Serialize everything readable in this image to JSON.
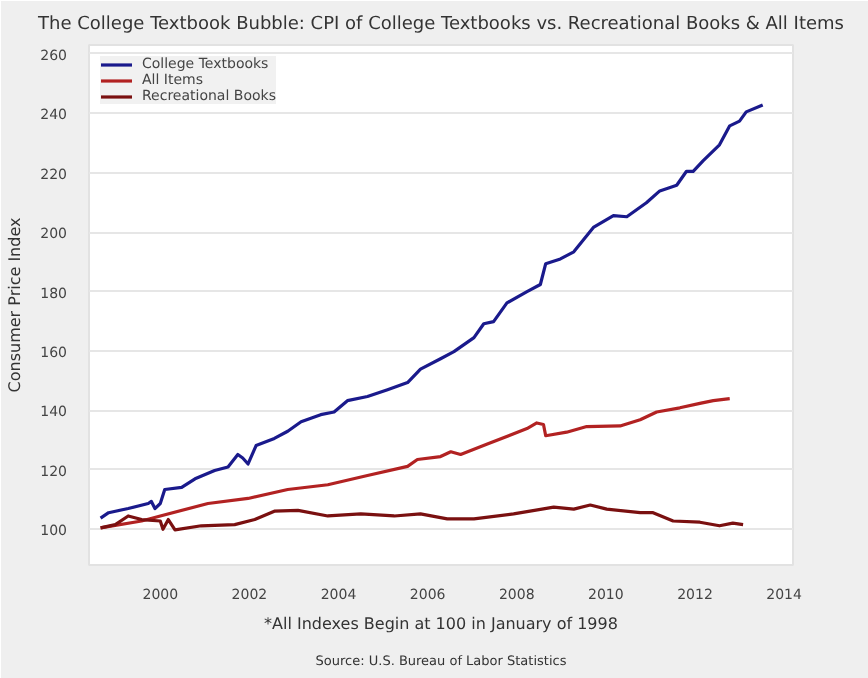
{
  "chart_data": {
    "type": "line",
    "title": "The College Textbook Bubble: CPI of College Textbooks vs. Recreational Books & All Items",
    "xlabel": "*All Indexes Begin at 100 in January of 1998",
    "ylabel": "Consumer Price Index",
    "annotations": [
      "Source: U.S. Bureau of Labor Statistics"
    ],
    "xlim": [
      1998.4,
      2014.2
    ],
    "xticks": [
      2000,
      2002,
      2004,
      2006,
      2008,
      2010,
      2012,
      2014
    ],
    "ylim": [
      88,
      263
    ],
    "yticks": [
      100,
      120,
      140,
      160,
      180,
      200,
      220,
      240,
      260
    ],
    "grid": "y",
    "legend": "top left",
    "marker": "none",
    "line_style": "solid",
    "series": [
      {
        "name": "College Textbooks",
        "color": "#1a1a8c",
        "x": [
          1998.66,
          1998.84,
          1999.28,
          1999.73,
          1999.8,
          1999.88,
          2000.0,
          2000.1,
          2000.48,
          2000.78,
          2001.22,
          2001.52,
          2001.74,
          2001.85,
          2001.97,
          2002.15,
          2002.56,
          2002.86,
          2003.16,
          2003.6,
          2003.9,
          2004.2,
          2004.65,
          2005.1,
          2005.55,
          2005.84,
          2006.29,
          2006.59,
          2007.04,
          2007.26,
          2007.48,
          2007.78,
          2008.23,
          2008.53,
          2008.65,
          2008.98,
          2009.28,
          2009.72,
          2010.17,
          2010.47,
          2010.91,
          2011.21,
          2011.59,
          2011.81,
          2011.96,
          2012.18,
          2012.55,
          2012.78,
          2013.0,
          2013.15,
          2013.52
        ],
        "values": [
          103.8,
          105.6,
          107.0,
          108.7,
          109.4,
          107.0,
          108.7,
          113.4,
          114.1,
          117.0,
          119.8,
          121.0,
          125.2,
          124.0,
          122.0,
          128.2,
          130.6,
          133.0,
          136.2,
          138.6,
          139.5,
          143.3,
          144.7,
          147.0,
          149.4,
          153.9,
          157.4,
          159.8,
          164.5,
          169.2,
          169.9,
          176.2,
          180.0,
          182.4,
          189.4,
          191.0,
          193.4,
          201.6,
          205.6,
          205.2,
          209.9,
          213.9,
          215.8,
          220.5,
          220.5,
          224.0,
          229.4,
          235.8,
          237.4,
          240.5,
          242.8
        ]
      },
      {
        "name": "All Items",
        "color": "#b22222",
        "x": [
          1998.66,
          1999.58,
          2000.0,
          2001.07,
          2001.97,
          2002.86,
          2003.76,
          2004.65,
          2005.55,
          2005.77,
          2006.29,
          2006.52,
          2006.74,
          2007.34,
          2008.23,
          2008.45,
          2008.6,
          2008.65,
          2009.12,
          2009.57,
          2010.32,
          2010.77,
          2011.14,
          2011.66,
          2012.11,
          2012.41,
          2012.78
        ],
        "values": [
          100.5,
          102.8,
          104.5,
          108.7,
          110.4,
          113.4,
          115.0,
          118.1,
          121.2,
          123.5,
          124.5,
          126.1,
          125.2,
          128.7,
          133.9,
          135.8,
          135.3,
          131.5,
          132.7,
          134.6,
          134.8,
          136.9,
          139.5,
          140.9,
          142.4,
          143.3,
          144.0
        ]
      },
      {
        "name": "Recreational Books",
        "color": "#7a1010",
        "x": [
          1998.66,
          1998.99,
          1999.28,
          1999.58,
          2000.0,
          2000.06,
          2000.18,
          2000.33,
          2000.92,
          2001.67,
          2002.12,
          2002.56,
          2003.09,
          2003.76,
          2004.5,
          2005.25,
          2005.84,
          2006.44,
          2007.04,
          2007.93,
          2008.83,
          2009.28,
          2009.65,
          2010.02,
          2010.77,
          2011.06,
          2011.51,
          2012.11,
          2012.55,
          2012.85,
          2013.08
        ],
        "values": [
          100.5,
          101.6,
          104.5,
          103.3,
          102.8,
          100.0,
          103.3,
          99.8,
          101.2,
          101.6,
          103.3,
          106.1,
          106.4,
          104.5,
          105.2,
          104.5,
          105.2,
          103.5,
          103.5,
          105.2,
          107.5,
          106.8,
          108.2,
          106.8,
          105.6,
          105.6,
          102.8,
          102.4,
          101.2,
          102.1,
          101.6
        ]
      }
    ]
  }
}
